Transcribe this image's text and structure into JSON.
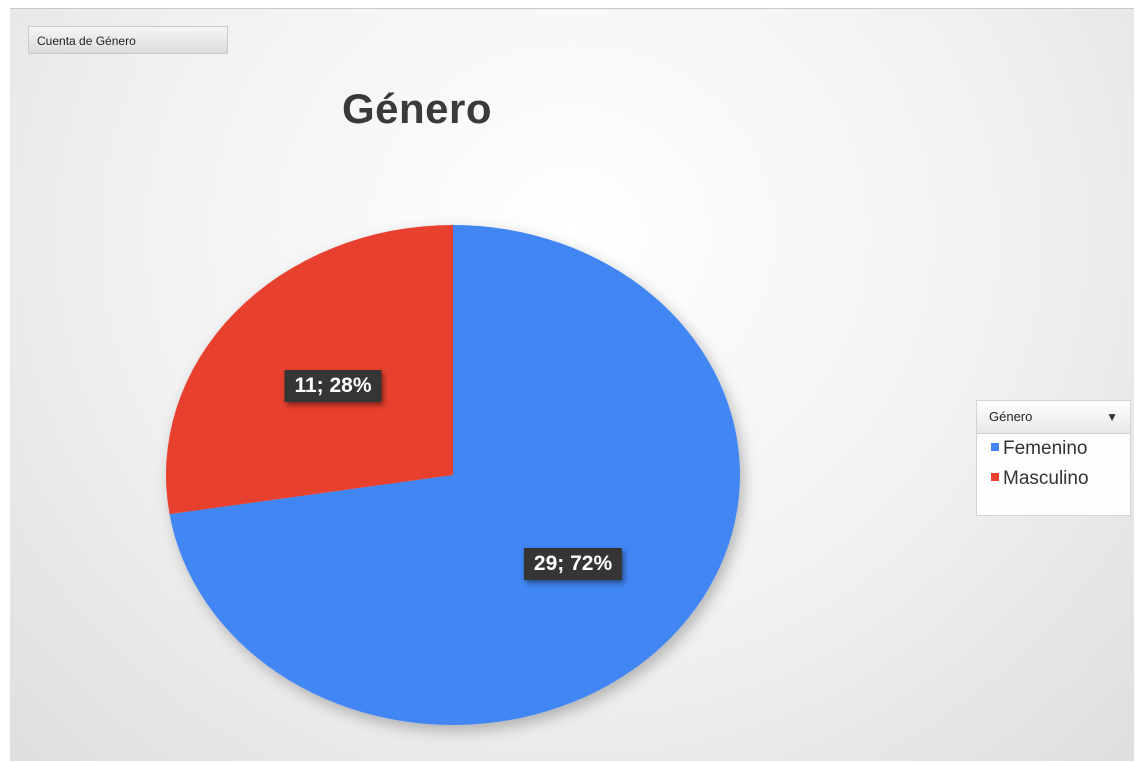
{
  "field_button": {
    "label": "Cuenta de Género"
  },
  "chart_data": {
    "type": "pie",
    "title": "Género",
    "categories": [
      "Femenino",
      "Masculino"
    ],
    "values": [
      29,
      11
    ],
    "percentages": [
      72,
      28
    ],
    "data_labels": [
      "29; 72%",
      "11; 28%"
    ],
    "colors": [
      "#4286f4",
      "#e8402f"
    ],
    "start_angle": "12 o'clock",
    "direction": "clockwise",
    "legend": {
      "title": "Género",
      "position": "right",
      "entries": [
        "Femenino",
        "Masculino"
      ]
    }
  },
  "icons": {
    "legend_filter": "dropdown-arrow-icon"
  }
}
